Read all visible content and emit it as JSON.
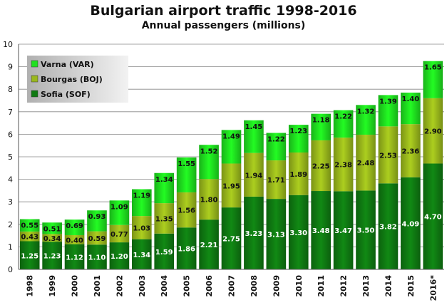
{
  "chart_data": {
    "type": "bar",
    "stacked": true,
    "title": "Bulgarian airport traffic 1998-2016",
    "subtitle": "Annual passengers (millions)",
    "categories": [
      "1998",
      "1999",
      "2000",
      "2001",
      "2002",
      "2003",
      "2004",
      "2005",
      "2006",
      "2007",
      "2008",
      "2009",
      "2010",
      "2011",
      "2012",
      "2013",
      "2014",
      "2015",
      "2016*"
    ],
    "series": [
      {
        "name": "Sofia (SOF)",
        "color": "#0f7a12",
        "values": [
          1.25,
          1.23,
          1.12,
          1.1,
          1.2,
          1.34,
          1.59,
          1.86,
          2.21,
          2.75,
          3.23,
          3.13,
          3.3,
          3.48,
          3.47,
          3.5,
          3.82,
          4.09,
          4.7
        ]
      },
      {
        "name": "Bourgas (BOJ)",
        "color": "#9ab81c",
        "values": [
          0.43,
          0.34,
          0.4,
          0.59,
          0.77,
          1.03,
          1.35,
          1.56,
          1.8,
          1.95,
          1.94,
          1.71,
          1.89,
          2.25,
          2.38,
          2.48,
          2.53,
          2.36,
          2.9
        ]
      },
      {
        "name": "Varna (VAR)",
        "color": "#1fe01f",
        "values": [
          0.55,
          0.51,
          0.69,
          0.93,
          1.09,
          1.19,
          1.34,
          1.55,
          1.52,
          1.49,
          1.45,
          1.22,
          1.23,
          1.18,
          1.22,
          1.32,
          1.39,
          1.4,
          1.65
        ]
      }
    ],
    "value_labels": {
      "Sofia (SOF)": [
        "1.25",
        "1.23",
        "1.12",
        "1.10",
        "1.20",
        "1.34",
        "1.59",
        "1.86",
        "2.21",
        "2.75",
        "3.23",
        "3.13",
        "3.30",
        "3.48",
        "3.47",
        "3.50",
        "3.82",
        "4.09",
        "4.70"
      ],
      "Bourgas (BOJ)": [
        "0.43",
        "0.34",
        "0.40",
        "0.59",
        "0.77",
        "1.03",
        "1.35",
        "1.56",
        "1.80",
        "1.95",
        "1.94",
        "1.71",
        "1.89",
        "2.25",
        "2.38",
        "2.48",
        "2.53",
        "2.36",
        "2.90"
      ],
      "Varna (VAR)": [
        "0.55",
        "0.51",
        "0.69",
        "0.93",
        "1.09",
        "1.19",
        "1.34",
        "1.55",
        "1.52",
        "1.49",
        "1.45",
        "1.22",
        "1.23",
        "1.18",
        "1.22",
        "1.32",
        "1.39",
        "1.40",
        "1.65"
      ]
    },
    "legend_order": [
      "Varna (VAR)",
      "Bourgas (BOJ)",
      "Sofia (SOF)"
    ],
    "legend_position": "top-left",
    "ylim": [
      0,
      10
    ],
    "yticks": [
      "0",
      "1",
      "2",
      "3",
      "4",
      "5",
      "6",
      "7",
      "8",
      "9",
      "10"
    ],
    "grid": true,
    "xlabel": "",
    "ylabel": ""
  }
}
